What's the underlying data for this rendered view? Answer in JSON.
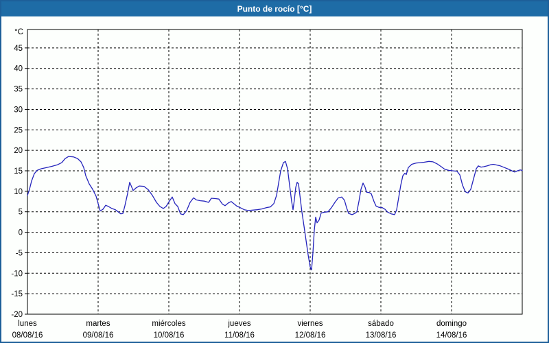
{
  "window": {
    "title": "Punto de rocío [°C]"
  },
  "colors": {
    "titlebar_bg": "#1e6ca6",
    "titlebar_text": "#ffffff",
    "frame_border": "#1d5f99",
    "background": "#fdfffd",
    "line": "#2424bc",
    "grid": "#000000",
    "axis": "#000000",
    "label": "#000000"
  },
  "chart_data": {
    "type": "line",
    "title": "Punto de rocío [°C]",
    "y_unit_label": "°C",
    "ylabel": "",
    "xlabel": "",
    "grid": "dashed",
    "legend": "none",
    "y_ticks": [
      45,
      40,
      35,
      30,
      25,
      20,
      15,
      10,
      5,
      0,
      -5,
      -10,
      -15,
      -20
    ],
    "y_range": [
      -20,
      49.5
    ],
    "x_range_days": [
      0,
      7
    ],
    "x_labels": [
      {
        "day": "lunes",
        "date": "08/08/16"
      },
      {
        "day": "martes",
        "date": "09/08/16"
      },
      {
        "day": "miércoles",
        "date": "10/08/16"
      },
      {
        "day": "jueves",
        "date": "11/08/16"
      },
      {
        "day": "viernes",
        "date": "12/08/16"
      },
      {
        "day": "sábado",
        "date": "13/08/16"
      },
      {
        "day": "domingo",
        "date": "14/08/16"
      }
    ],
    "series": [
      {
        "name": "Punto de rocío",
        "color": "#2424bc",
        "points": [
          [
            0.0,
            9.0
          ],
          [
            0.029,
            10.5
          ],
          [
            0.058,
            12.5
          ],
          [
            0.097,
            14.3
          ],
          [
            0.136,
            15.1
          ],
          [
            0.194,
            15.5
          ],
          [
            0.272,
            15.8
          ],
          [
            0.35,
            16.1
          ],
          [
            0.427,
            16.5
          ],
          [
            0.485,
            17.0
          ],
          [
            0.534,
            18.0
          ],
          [
            0.583,
            18.5
          ],
          [
            0.65,
            18.4
          ],
          [
            0.709,
            18.0
          ],
          [
            0.757,
            17.2
          ],
          [
            0.796,
            15.8
          ],
          [
            0.825,
            13.8
          ],
          [
            0.874,
            11.8
          ],
          [
            0.922,
            10.5
          ],
          [
            0.971,
            8.8
          ],
          [
            1.0,
            7.0
          ],
          [
            1.029,
            5.2
          ],
          [
            1.068,
            5.6
          ],
          [
            1.107,
            6.6
          ],
          [
            1.146,
            6.3
          ],
          [
            1.194,
            5.8
          ],
          [
            1.243,
            5.5
          ],
          [
            1.282,
            5.0
          ],
          [
            1.32,
            4.5
          ],
          [
            1.35,
            4.6
          ],
          [
            1.379,
            6.5
          ],
          [
            1.417,
            9.5
          ],
          [
            1.447,
            12.2
          ],
          [
            1.476,
            11.0
          ],
          [
            1.495,
            10.2
          ],
          [
            1.534,
            10.8
          ],
          [
            1.583,
            11.3
          ],
          [
            1.65,
            11.2
          ],
          [
            1.709,
            10.4
          ],
          [
            1.767,
            9.0
          ],
          [
            1.825,
            7.3
          ],
          [
            1.874,
            6.3
          ],
          [
            1.922,
            5.8
          ],
          [
            1.961,
            6.3
          ],
          [
            2.0,
            7.4
          ],
          [
            2.049,
            8.6
          ],
          [
            2.087,
            7.0
          ],
          [
            2.126,
            6.3
          ],
          [
            2.165,
            4.5
          ],
          [
            2.204,
            4.3
          ],
          [
            2.252,
            5.3
          ],
          [
            2.301,
            7.3
          ],
          [
            2.35,
            8.4
          ],
          [
            2.388,
            7.9
          ],
          [
            2.447,
            7.7
          ],
          [
            2.505,
            7.6
          ],
          [
            2.563,
            7.3
          ],
          [
            2.602,
            8.3
          ],
          [
            2.67,
            8.2
          ],
          [
            2.709,
            8.1
          ],
          [
            2.757,
            6.9
          ],
          [
            2.796,
            6.5
          ],
          [
            2.845,
            7.2
          ],
          [
            2.883,
            7.5
          ],
          [
            2.961,
            6.4
          ],
          [
            3.01,
            6.0
          ],
          [
            3.068,
            5.5
          ],
          [
            3.126,
            5.3
          ],
          [
            3.184,
            5.4
          ],
          [
            3.252,
            5.5
          ],
          [
            3.32,
            5.7
          ],
          [
            3.379,
            6.0
          ],
          [
            3.437,
            6.2
          ],
          [
            3.485,
            7.0
          ],
          [
            3.524,
            9.0
          ],
          [
            3.553,
            12.0
          ],
          [
            3.583,
            15.0
          ],
          [
            3.621,
            17.0
          ],
          [
            3.65,
            17.3
          ],
          [
            3.68,
            15.5
          ],
          [
            3.709,
            11.5
          ],
          [
            3.738,
            7.5
          ],
          [
            3.757,
            5.5
          ],
          [
            3.777,
            8.0
          ],
          [
            3.796,
            11.0
          ],
          [
            3.816,
            12.2
          ],
          [
            3.835,
            11.8
          ],
          [
            3.854,
            9.0
          ],
          [
            3.883,
            5.0
          ],
          [
            3.913,
            1.5
          ],
          [
            3.942,
            -2.0
          ],
          [
            3.971,
            -5.5
          ],
          [
            4.0,
            -8.5
          ],
          [
            4.019,
            -9.2
          ],
          [
            4.039,
            -5.0
          ],
          [
            4.058,
            0.5
          ],
          [
            4.078,
            3.7
          ],
          [
            4.097,
            2.3
          ],
          [
            4.126,
            3.0
          ],
          [
            4.155,
            4.7
          ],
          [
            4.204,
            4.9
          ],
          [
            4.252,
            5.0
          ],
          [
            4.301,
            6.0
          ],
          [
            4.35,
            7.3
          ],
          [
            4.398,
            8.4
          ],
          [
            4.447,
            8.6
          ],
          [
            4.485,
            7.8
          ],
          [
            4.515,
            6.0
          ],
          [
            4.544,
            4.6
          ],
          [
            4.592,
            4.3
          ],
          [
            4.631,
            4.6
          ],
          [
            4.66,
            5.0
          ],
          [
            4.689,
            7.5
          ],
          [
            4.718,
            10.5
          ],
          [
            4.748,
            12.0
          ],
          [
            4.777,
            11.0
          ],
          [
            4.796,
            9.8
          ],
          [
            4.835,
            9.7
          ],
          [
            4.864,
            9.4
          ],
          [
            4.903,
            7.5
          ],
          [
            4.932,
            6.4
          ],
          [
            4.971,
            6.1
          ],
          [
            5.019,
            6.0
          ],
          [
            5.058,
            5.6
          ],
          [
            5.097,
            4.9
          ],
          [
            5.146,
            4.5
          ],
          [
            5.194,
            4.3
          ],
          [
            5.223,
            5.5
          ],
          [
            5.252,
            8.5
          ],
          [
            5.282,
            11.5
          ],
          [
            5.311,
            13.8
          ],
          [
            5.34,
            14.4
          ],
          [
            5.359,
            14.1
          ],
          [
            5.388,
            15.8
          ],
          [
            5.437,
            16.6
          ],
          [
            5.495,
            16.9
          ],
          [
            5.553,
            17.0
          ],
          [
            5.612,
            17.1
          ],
          [
            5.68,
            17.3
          ],
          [
            5.738,
            17.2
          ],
          [
            5.796,
            16.7
          ],
          [
            5.854,
            16.0
          ],
          [
            5.902,
            15.4
          ],
          [
            5.961,
            15.1
          ],
          [
            6.019,
            15.0
          ],
          [
            6.078,
            14.9
          ],
          [
            6.117,
            14.0
          ],
          [
            6.155,
            11.5
          ],
          [
            6.194,
            9.9
          ],
          [
            6.233,
            9.6
          ],
          [
            6.272,
            10.5
          ],
          [
            6.311,
            13.0
          ],
          [
            6.35,
            15.5
          ],
          [
            6.379,
            16.2
          ],
          [
            6.417,
            15.9
          ],
          [
            6.456,
            16.0
          ],
          [
            6.505,
            16.2
          ],
          [
            6.553,
            16.5
          ],
          [
            6.592,
            16.6
          ],
          [
            6.641,
            16.4
          ],
          [
            6.689,
            16.2
          ],
          [
            6.748,
            15.8
          ],
          [
            6.806,
            15.4
          ],
          [
            6.854,
            15.0
          ],
          [
            6.893,
            14.7
          ],
          [
            6.932,
            15.0
          ],
          [
            6.971,
            15.2
          ],
          [
            7.0,
            15.1
          ]
        ]
      }
    ]
  }
}
